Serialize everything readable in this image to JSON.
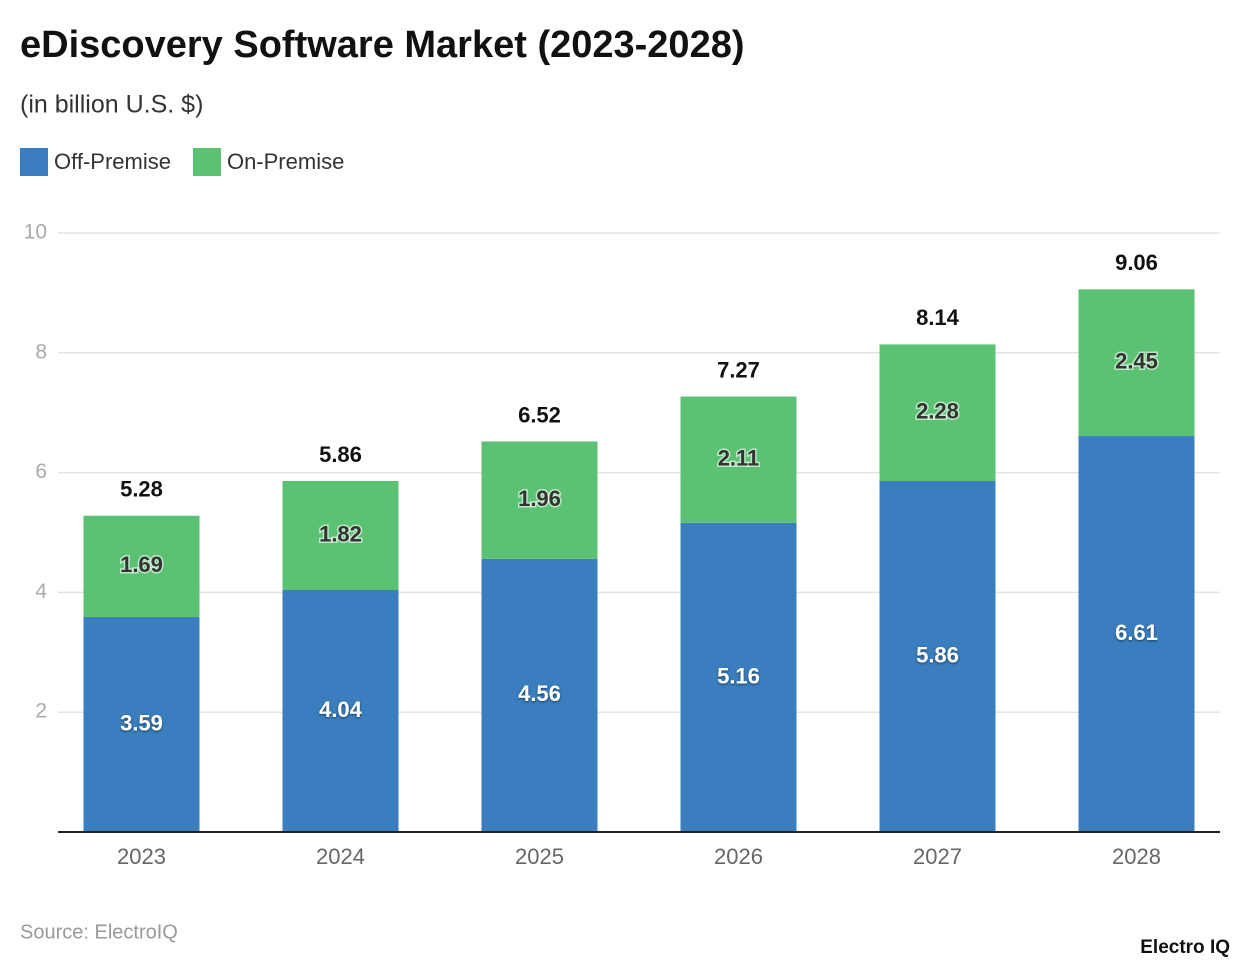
{
  "chart_data": {
    "type": "stacked-bar",
    "title": "eDiscovery Software Market (2023-2028)",
    "subtitle": "(in billion U.S. $)",
    "categories": [
      "2023",
      "2024",
      "2025",
      "2026",
      "2027",
      "2028"
    ],
    "series": [
      {
        "name": "Off-Premise",
        "color": "#3a7ebf",
        "values": [
          3.59,
          4.04,
          4.56,
          5.16,
          5.86,
          6.61
        ]
      },
      {
        "name": "On-Premise",
        "color": "#5bc274",
        "values": [
          1.69,
          1.82,
          1.96,
          2.11,
          2.28,
          2.45
        ]
      }
    ],
    "totals": [
      5.28,
      5.86,
      6.52,
      7.27,
      8.14,
      9.06
    ],
    "ylim": [
      0,
      10
    ],
    "yticks": [
      2,
      4,
      6,
      8,
      10
    ],
    "grid": true,
    "source": "Source: ElectroIQ",
    "brand": "Electro IQ"
  }
}
